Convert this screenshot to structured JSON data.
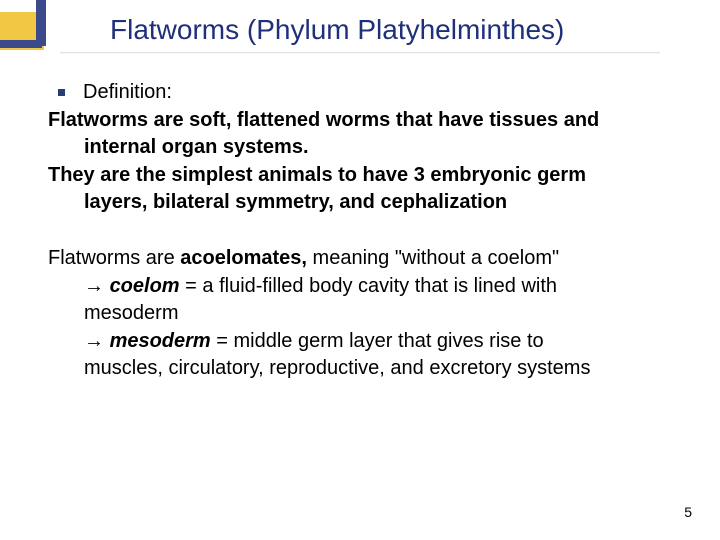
{
  "slide": {
    "title": "Flatworms (Phylum Platyhelminthes)",
    "title_color": "#1f2f7a",
    "title_fontsize": 28,
    "accent_yellow": "#f2c744",
    "accent_blue": "#3a4a8a",
    "background": "#ffffff",
    "body_fontsize": 20,
    "bullet_label": "Definition:",
    "para1_a": "Flatworms are soft, flattened worms that have tissues and",
    "para1_b": "internal organ systems.",
    "para2_a": "They are the simplest animals to have 3 embryonic germ",
    "para2_b": "layers, bilateral symmetry, and cephalization",
    "para3_pre": "Flatworms are ",
    "para3_bold": "acoelomates,",
    "para3_post": " meaning \"without a coelom\"",
    "arrow": "→",
    "coelom_label": "coelom",
    "coelom_def_a": " = a fluid-filled body cavity that is lined with",
    "coelom_def_b": "mesoderm",
    "mesoderm_label": "mesoderm",
    "mesoderm_def_a": " = middle germ layer that gives rise to",
    "mesoderm_def_b": "muscles, circulatory, reproductive, and excretory systems",
    "page_number": "5"
  }
}
